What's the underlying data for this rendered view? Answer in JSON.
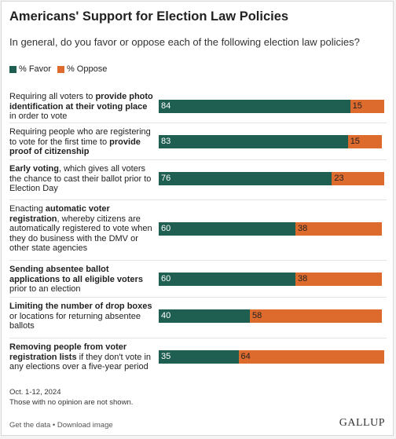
{
  "chart_data": {
    "type": "bar",
    "orientation": "horizontal",
    "stacked": true,
    "title": "Americans' Support for Election Law Policies",
    "subtitle": "In general, do you favor or oppose each of the following election law policies?",
    "xlim": [
      0,
      100
    ],
    "legend_position": "top-left",
    "series": [
      {
        "name": "% Favor",
        "color": "#1f5f52",
        "values": [
          84,
          83,
          76,
          60,
          60,
          40,
          35
        ]
      },
      {
        "name": "% Oppose",
        "color": "#dd6b2d",
        "values": [
          15,
          15,
          23,
          38,
          38,
          58,
          64
        ]
      }
    ],
    "categories": [
      [
        {
          "t": "Requiring all voters to "
        },
        {
          "t": "provide photo identification at their voting place",
          "b": true
        },
        {
          "t": " in order to vote"
        }
      ],
      [
        {
          "t": "Requiring people who are registering to vote for the first time to "
        },
        {
          "t": "provide proof of citizenship",
          "b": true
        }
      ],
      [
        {
          "t": "Early voting",
          "b": true
        },
        {
          "t": ", which gives all voters the chance to cast their ballot prior to Election Day"
        }
      ],
      [
        {
          "t": "Enacting "
        },
        {
          "t": "automatic voter registration",
          "b": true
        },
        {
          "t": ", whereby citizens are automatically registered to vote when they do business with the DMV or other state agencies"
        }
      ],
      [
        {
          "t": "Sending absentee ballot applications to all eligible voters",
          "b": true
        },
        {
          "t": " prior to an election"
        }
      ],
      [
        {
          "t": "Limiting the number of drop boxes",
          "b": true
        },
        {
          "t": " or locations for returning absentee ballots"
        }
      ],
      [
        {
          "t": "Removing people from voter registration lists",
          "b": true
        },
        {
          "t": " if they don't vote in any elections over a five-year period"
        }
      ]
    ]
  },
  "footnotes": {
    "date": "Oct. 1-12, 2024",
    "note": "Those with no opinion are not shown."
  },
  "footer": {
    "links": "Get the data • Download image",
    "brand": "GALLUP"
  }
}
